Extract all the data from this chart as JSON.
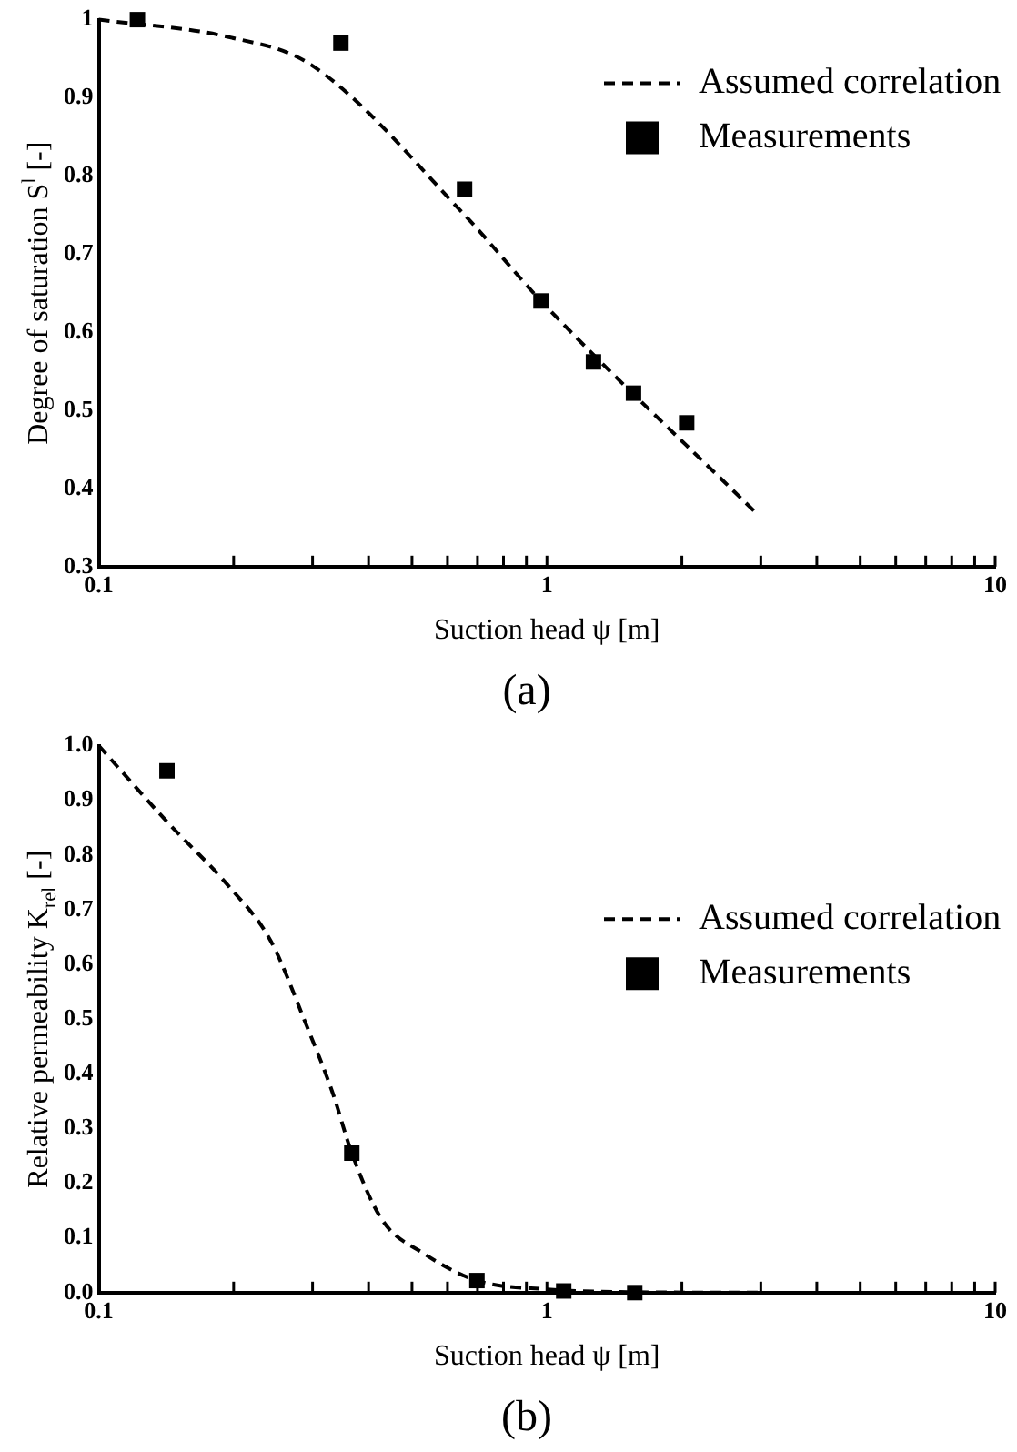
{
  "chart_data": [
    {
      "type": "line",
      "title": "(a)",
      "xlabel": "Suction head ψ [m]",
      "ylabel": "Degree of saturation S$^{l}$ [-]",
      "log": "x",
      "xlim": [
        0.1,
        10
      ],
      "ylim": [
        0.3,
        1
      ],
      "xticks": [
        0.1,
        {
          "value": 0.2,
          "label": null
        },
        {
          "value": 0.3,
          "label": null
        },
        {
          "value": 0.4,
          "label": null
        },
        {
          "value": 0.5,
          "label": null
        },
        {
          "value": 0.6,
          "label": null
        },
        {
          "value": 0.7,
          "label": null
        },
        {
          "value": 0.8,
          "label": null
        },
        {
          "value": 0.9,
          "label": null
        },
        1,
        {
          "value": 2,
          "label": null
        },
        {
          "value": 3,
          "label": null
        },
        {
          "value": 4,
          "label": null
        },
        {
          "value": 5,
          "label": null
        },
        {
          "value": 6,
          "label": null
        },
        {
          "value": 7,
          "label": null
        },
        {
          "value": 8,
          "label": null
        },
        {
          "value": 9,
          "label": null
        },
        10
      ],
      "yticks": [
        0.3,
        0.4,
        0.5,
        0.6,
        0.7,
        0.8,
        0.9,
        1
      ],
      "grid": false,
      "legend": "top right",
      "series": [
        {
          "name": "Assumed correlation",
          "color": "#000000",
          "line_style": "dashed",
          "marker": "none",
          "x": [
            0.1,
            0.194,
            0.298,
            0.655,
            0.97,
            2.96
          ],
          "values": [
            1.0,
            0.978,
            0.942,
            0.75,
            0.64,
            0.366
          ]
        },
        {
          "name": "Measurements",
          "type": "scatter",
          "color": "#000000",
          "marker": "square",
          "x": [
            0.122,
            0.347,
            0.655,
            0.97,
            1.27,
            1.56,
            2.05
          ],
          "values": [
            1.0,
            0.97,
            0.783,
            0.64,
            0.562,
            0.522,
            0.484
          ]
        }
      ]
    },
    {
      "type": "line",
      "title": "(b)",
      "xlabel": "Suction head ψ [m]",
      "ylabel": "Relative permeability K$_{rel}$ [-]",
      "log": "x",
      "xlim": [
        0.1,
        10
      ],
      "ylim": [
        0,
        1
      ],
      "xticks": [
        0.1,
        {
          "value": 0.2,
          "label": null
        },
        {
          "value": 0.3,
          "label": null
        },
        {
          "value": 0.4,
          "label": null
        },
        {
          "value": 0.5,
          "label": null
        },
        {
          "value": 0.6,
          "label": null
        },
        {
          "value": 0.7,
          "label": null
        },
        {
          "value": 0.8,
          "label": null
        },
        {
          "value": 0.9,
          "label": null
        },
        1,
        {
          "value": 2,
          "label": null
        },
        {
          "value": 3,
          "label": null
        },
        {
          "value": 4,
          "label": null
        },
        {
          "value": 5,
          "label": null
        },
        {
          "value": 6,
          "label": null
        },
        {
          "value": 7,
          "label": null
        },
        {
          "value": 8,
          "label": null
        },
        {
          "value": 9,
          "label": null
        },
        10
      ],
      "yticks": [
        {
          "value": 0,
          "label": "0.0"
        },
        0.1,
        0.2,
        0.3,
        0.4,
        0.5,
        0.6,
        0.7,
        0.8,
        0.9,
        {
          "value": 1,
          "label": "1.0"
        }
      ],
      "grid": false,
      "legend": "right",
      "series": [
        {
          "name": "Assumed correlation",
          "color": "#000000",
          "line_style": "dashed",
          "marker": "none",
          "x": [
            0.1,
            0.142,
            0.195,
            0.242,
            0.289,
            0.333,
            0.367,
            0.428,
            0.53,
            0.698,
            1,
            1.55,
            2.96
          ],
          "values": [
            1.0,
            0.861,
            0.743,
            0.643,
            0.494,
            0.364,
            0.255,
            0.134,
            0.072,
            0.022,
            0.006,
            0.001,
            0
          ]
        },
        {
          "name": "Measurements",
          "type": "scatter",
          "color": "#000000",
          "marker": "square",
          "x": [
            0.142,
            0.367,
            0.698,
            1.09,
            1.57
          ],
          "values": [
            0.954,
            0.255,
            0.022,
            0.003,
            0
          ]
        }
      ]
    }
  ]
}
